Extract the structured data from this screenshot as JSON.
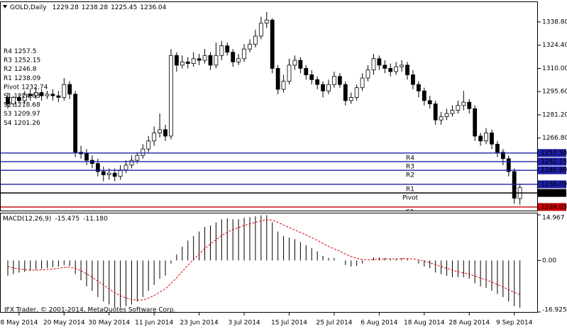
{
  "chart_data": [
    {
      "type": "candlestick",
      "title": "GOLD,Daily",
      "categories": [
        null,
        null,
        "8 May 2014",
        null,
        null,
        null,
        null,
        null,
        null,
        null,
        "20 May 2014",
        null,
        null,
        null,
        null,
        null,
        null,
        null,
        "30 May 2014",
        null,
        null,
        null,
        null,
        null,
        null,
        null,
        "11 Jun 2014",
        null,
        null,
        null,
        null,
        null,
        null,
        null,
        "23 Jun 2014",
        null,
        null,
        null,
        null,
        null,
        null,
        null,
        "3 Jul 2014",
        null,
        null,
        null,
        null,
        null,
        null,
        null,
        "15 Jul 2014",
        null,
        null,
        null,
        null,
        null,
        null,
        null,
        "25 Jul 2014",
        null,
        null,
        null,
        null,
        null,
        null,
        null,
        "6 Aug 2014",
        null,
        null,
        null,
        null,
        null,
        null,
        null,
        "18 Aug 2014",
        null,
        null,
        null,
        null,
        null,
        null,
        null,
        "28 Aug 2014",
        null,
        null,
        null,
        null,
        null,
        null,
        null,
        "9 Sep 2014",
        null
      ],
      "open": [
        1292,
        1288,
        1292,
        1290,
        1294,
        1293,
        1295,
        1293,
        1294,
        1293,
        1292,
        1300,
        1294,
        1258,
        1257,
        1253,
        1251,
        1246,
        1244,
        1245,
        1243,
        1247,
        1250,
        1253,
        1256,
        1260,
        1265,
        1270,
        1272,
        1268,
        1318,
        1312,
        1314,
        1313,
        1316,
        1315,
        1318,
        1312,
        1318,
        1324,
        1320,
        1314,
        1316,
        1322,
        1325,
        1330,
        1338,
        1340,
        1310,
        1297,
        1302,
        1312,
        1315,
        1310,
        1306,
        1303,
        1300,
        1296,
        1300,
        1305,
        1300,
        1290,
        1292,
        1298,
        1304,
        1309,
        1316,
        1312,
        1310,
        1308,
        1311,
        1312,
        1306,
        1300,
        1296,
        1290,
        1288,
        1278,
        1280,
        1282,
        1284,
        1287,
        1289,
        1285,
        1268,
        1265,
        1270,
        1263,
        1258,
        1254,
        1246,
        1229.28
      ],
      "high": [
        1295,
        1293,
        1294,
        1296,
        1297,
        1298,
        1297,
        1296,
        1297,
        1296,
        1304,
        1302,
        1296,
        1262,
        1260,
        1256,
        1254,
        1249,
        1248,
        1248,
        1250,
        1253,
        1256,
        1258,
        1263,
        1268,
        1274,
        1282,
        1275,
        1322,
        1320,
        1318,
        1317,
        1320,
        1319,
        1322,
        1320,
        1326,
        1327,
        1326,
        1322,
        1319,
        1325,
        1328,
        1334,
        1342,
        1345,
        1341,
        1312,
        1306,
        1316,
        1318,
        1317,
        1312,
        1309,
        1305,
        1302,
        1303,
        1308,
        1307,
        1302,
        1295,
        1300,
        1307,
        1312,
        1319,
        1318,
        1315,
        1313,
        1314,
        1315,
        1314,
        1309,
        1302,
        1298,
        1293,
        1290,
        1283,
        1285,
        1287,
        1290,
        1296,
        1291,
        1287,
        1270,
        1273,
        1272,
        1265,
        1260,
        1256,
        1248,
        1238.28
      ],
      "low": [
        1285,
        1286,
        1288,
        1288,
        1290,
        1291,
        1290,
        1291,
        1290,
        1289,
        1290,
        1291,
        1255,
        1254,
        1250,
        1248,
        1243,
        1240,
        1241,
        1240,
        1241,
        1245,
        1248,
        1251,
        1254,
        1258,
        1262,
        1267,
        1265,
        1266,
        1308,
        1310,
        1310,
        1311,
        1312,
        1313,
        1309,
        1310,
        1315,
        1318,
        1311,
        1312,
        1314,
        1320,
        1323,
        1328,
        1335,
        1307,
        1294,
        1295,
        1300,
        1309,
        1307,
        1303,
        1300,
        1297,
        1292,
        1294,
        1298,
        1298,
        1287,
        1288,
        1290,
        1296,
        1302,
        1306,
        1309,
        1307,
        1305,
        1306,
        1308,
        1303,
        1297,
        1292,
        1287,
        1285,
        1275,
        1275,
        1278,
        1280,
        1282,
        1284,
        1282,
        1265,
        1262,
        1263,
        1260,
        1255,
        1250,
        1243,
        1226,
        1225.45
      ],
      "close": [
        1288,
        1292,
        1290,
        1294,
        1293,
        1295,
        1293,
        1294,
        1293,
        1292,
        1300,
        1294,
        1258,
        1257,
        1253,
        1251,
        1246,
        1244,
        1245,
        1243,
        1247,
        1250,
        1253,
        1256,
        1260,
        1265,
        1270,
        1272,
        1268,
        1318,
        1312,
        1314,
        1313,
        1316,
        1315,
        1318,
        1312,
        1318,
        1324,
        1320,
        1314,
        1316,
        1322,
        1325,
        1330,
        1338,
        1340,
        1310,
        1297,
        1302,
        1312,
        1315,
        1310,
        1306,
        1303,
        1300,
        1296,
        1300,
        1305,
        1300,
        1290,
        1292,
        1298,
        1304,
        1309,
        1316,
        1312,
        1310,
        1308,
        1311,
        1312,
        1306,
        1300,
        1296,
        1290,
        1288,
        1278,
        1280,
        1282,
        1284,
        1287,
        1289,
        1285,
        1268,
        1265,
        1270,
        1263,
        1258,
        1254,
        1246,
        1229.5,
        1236.04
      ],
      "bull_color": "#ffffff",
      "bear_color": "#000000",
      "ylim": [
        1221.8,
        1350.2
      ],
      "yticks": [
        {
          "value": 1338.8,
          "label": "1338.80"
        },
        {
          "value": 1324.4,
          "label": "1324.40"
        },
        {
          "value": 1310,
          "label": "1310.00"
        },
        {
          "value": 1295.6,
          "label": "1295.60"
        },
        {
          "value": 1281.2,
          "label": "1281.20"
        },
        {
          "value": 1266.8,
          "label": "1266.80"
        }
      ],
      "levels": [
        {
          "name": "R4",
          "value": 1257.5,
          "label": "1257.50",
          "color": "#1e1ea6"
        },
        {
          "name": "R3",
          "value": 1252.15,
          "label": "1252.15",
          "color": "#1e1ea6"
        },
        {
          "name": "R2",
          "value": 1246.8,
          "label": "1246.80",
          "color": "#1e1ea6"
        },
        {
          "name": "R1",
          "value": 1238.09,
          "label": "1238.09",
          "color": "#1e1ea6"
        },
        {
          "name": "Pivot",
          "value": 1232.74,
          "label": "1232.74",
          "color": "#000000"
        },
        {
          "name": "S1",
          "value": 1224.03,
          "label": "1224.03",
          "color": "#c80000"
        },
        {
          "name": "S2",
          "value": 1218.68
        },
        {
          "name": "S3",
          "value": 1209.97
        },
        {
          "name": "S4",
          "value": 1201.26
        }
      ],
      "level_text_color": "#c80000"
    },
    {
      "type": "macd",
      "title": "MACD(12,26,9)",
      "series": [
        {
          "color": "#000000",
          "style": "histogram",
          "values": [
            -5,
            -4.5,
            -4,
            -3.8,
            -3.5,
            -3,
            -2.8,
            -2.5,
            -2.2,
            -2,
            -1.5,
            -1.8,
            -4.5,
            -6.5,
            -8.5,
            -10,
            -12,
            -13.5,
            -14.5,
            -15.5,
            -15.5,
            -15,
            -14.5,
            -13.5,
            -12,
            -10,
            -8,
            -6,
            -5,
            -1,
            2,
            4.5,
            6.5,
            8,
            9.5,
            11,
            11.5,
            12.5,
            13.5,
            13.8,
            13.5,
            13.5,
            14,
            14.2,
            14.5,
            14.8,
            14.9,
            12.5,
            9.5,
            8,
            7.5,
            7,
            6,
            5,
            4,
            3,
            1.5,
            0.8,
            0.8,
            0,
            -1.5,
            -2,
            -1.8,
            -1,
            0,
            1,
            1,
            0.8,
            0.5,
            0.5,
            0.8,
            0.5,
            0,
            -1,
            -2,
            -2.5,
            -4,
            -4.5,
            -5,
            -5.5,
            -5.5,
            -5.5,
            -6,
            -7.5,
            -8.5,
            -9,
            -10,
            -11,
            -12,
            -13.5,
            -15,
            -15.475
          ]
        },
        {
          "color": "#e00000",
          "style": "dashed",
          "values": [
            -2,
            -2.5,
            -2.8,
            -3,
            -3.2,
            -3.2,
            -3.1,
            -3,
            -2.8,
            -2.6,
            -2.3,
            -2.2,
            -2.6,
            -3.4,
            -4.4,
            -5.5,
            -6.8,
            -8.1,
            -9.4,
            -10.6,
            -11.6,
            -12.3,
            -12.8,
            -13,
            -13,
            -12.4,
            -11.5,
            -10.4,
            -9.3,
            -7.6,
            -5.7,
            -3.6,
            -1.6,
            0.3,
            2.1,
            3.9,
            5.4,
            6.8,
            8.2,
            9.3,
            10.1,
            10.8,
            11.5,
            12,
            12.5,
            13,
            13.4,
            13.2,
            12.5,
            11.6,
            10.8,
            10,
            9.2,
            8.4,
            7.5,
            6.6,
            5.6,
            4.6,
            3.8,
            3,
            2.1,
            1.3,
            0.7,
            0.3,
            0.2,
            0.3,
            0.4,
            0.5,
            0.5,
            0.5,
            0.6,
            0.6,
            0.5,
            0.2,
            -0.2,
            -0.7,
            -1.4,
            -2,
            -2.6,
            -3.2,
            -3.7,
            -4.1,
            -4.5,
            -5.1,
            -5.8,
            -6.4,
            -7.1,
            -7.9,
            -8.7,
            -9.6,
            -10.5,
            -11.18
          ],
          "value_labels": [
            null,
            null,
            null,
            null,
            null,
            null,
            null,
            null,
            null,
            null,
            null,
            null,
            null,
            null,
            null,
            null,
            null,
            null,
            null,
            null,
            null,
            null,
            null,
            null,
            null,
            null,
            null,
            null,
            null,
            null,
            null,
            null,
            null,
            null,
            null,
            null,
            null,
            null,
            null,
            null,
            null,
            null,
            null,
            null,
            null,
            null,
            null,
            null,
            null,
            null,
            null,
            null,
            null,
            null,
            null,
            null,
            null,
            null,
            null,
            null,
            null,
            null,
            null,
            null,
            null,
            null,
            null,
            null,
            null,
            null,
            null,
            null,
            null,
            null,
            null,
            null,
            null,
            null,
            null,
            null,
            null,
            null,
            null,
            null,
            null,
            null,
            null,
            null,
            null,
            null,
            null,
            "-11.180"
          ]
        }
      ],
      "ylim": [
        -16.925,
        14.967
      ],
      "yticks": [
        14.967,
        {
          "value": 0,
          "label": "0.00"
        },
        -16.925
      ],
      "annotation": "IFX Trader, © 2001-2014, MetaQuotes Software Corp."
    }
  ]
}
